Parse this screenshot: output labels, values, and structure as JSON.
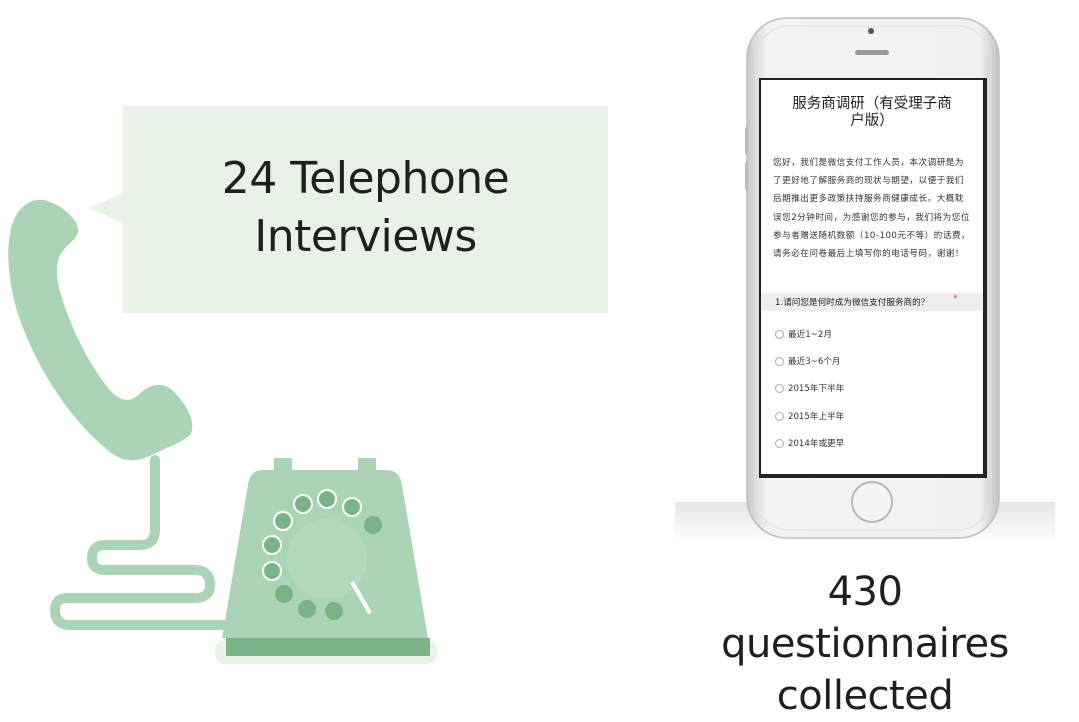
{
  "bubble": {
    "line1": "24 Telephone",
    "line2": "Interviews"
  },
  "caption": {
    "line1": "430 questionnaires",
    "line2": "collected"
  },
  "survey": {
    "title_line1": "服务商调研（有受理子商",
    "title_line2": "户版）",
    "intro": "您好，我们是微信支付工作人员，本次调研是为了更好地了解服务商的现状与期望，以便于我们后期推出更多政策扶持服务商健康成长。大概耽误您2分钟时间，为感谢您的参与，我们将为您位参与者赠送随机数额（10-100元不等）的话费，请务必在问卷最后上填写你的电话号码，谢谢！",
    "question": "1.请问您是何时成为微信支付服务商的？",
    "required_mark": "*",
    "options": [
      "最近1~2月",
      "最近3~6个月",
      "2015年下半年",
      "2015年上半年",
      "2014年或更早"
    ]
  },
  "colors": {
    "telephone_green": "#abd4b6",
    "telephone_dark": "#7bb389",
    "bubble_bg": "#e9f2e7"
  },
  "icons": [
    "telephone-illustration",
    "smartphone-illustration"
  ]
}
